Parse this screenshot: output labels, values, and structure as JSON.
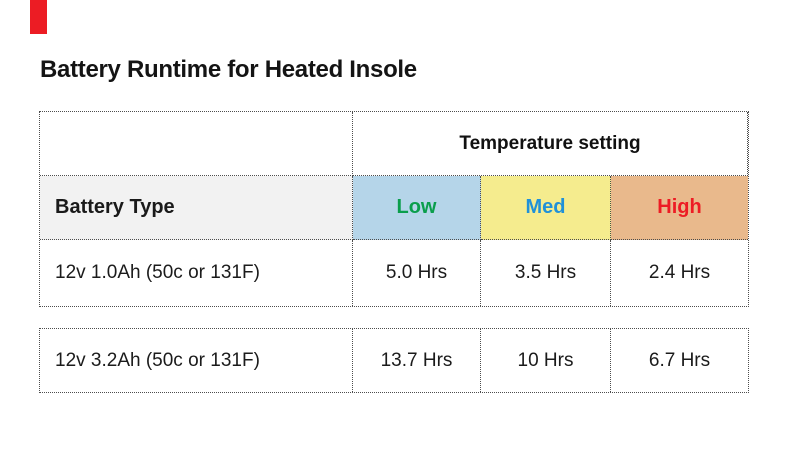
{
  "page": {
    "background": "#ffffff",
    "decor": {
      "red_marker_color": "#ec1c24"
    }
  },
  "title": "Battery Runtime for Heated Insole",
  "table": {
    "group_header": "Temperature setting",
    "columns": [
      {
        "label": "Battery Type",
        "bg": "#f2f2f2",
        "text_color": "#1a1a1a"
      },
      {
        "label": "Low",
        "bg": "#b5d5e9",
        "text_color": "#0a9e4c"
      },
      {
        "label": "Med",
        "bg": "#f5ec8e",
        "text_color": "#2091d8"
      },
      {
        "label": "High",
        "bg": "#e9b98c",
        "text_color": "#ed1c24"
      }
    ],
    "rows": [
      [
        "12v 1.0Ah (50c or 131F)",
        "5.0 Hrs",
        "3.5 Hrs",
        "2.4 Hrs"
      ],
      [
        "12v 3.2Ah (50c or 131F)",
        "13.7 Hrs",
        "10 Hrs",
        "6.7 Hrs"
      ]
    ],
    "border_color": "#4d4d4d"
  },
  "chart_data": {
    "type": "table",
    "title": "Battery Runtime for Heated Insole",
    "column_group_header": "Temperature setting",
    "columns": [
      "Battery Type",
      "Low",
      "Med",
      "High"
    ],
    "rows": [
      [
        "12v 1.0Ah (50c or 131F)",
        "5.0 Hrs",
        "3.5 Hrs",
        "2.4 Hrs"
      ],
      [
        "12v 3.2Ah (50c or 131F)",
        "13.7 Hrs",
        "10 Hrs",
        "6.7 Hrs"
      ]
    ],
    "units": "hours",
    "numeric_values": {
      "12v 1.0Ah (50c or 131F)": {
        "Low": 5.0,
        "Med": 3.5,
        "High": 2.4
      },
      "12v 3.2Ah (50c or 131F)": {
        "Low": 13.7,
        "Med": 10,
        "High": 6.7
      }
    }
  }
}
